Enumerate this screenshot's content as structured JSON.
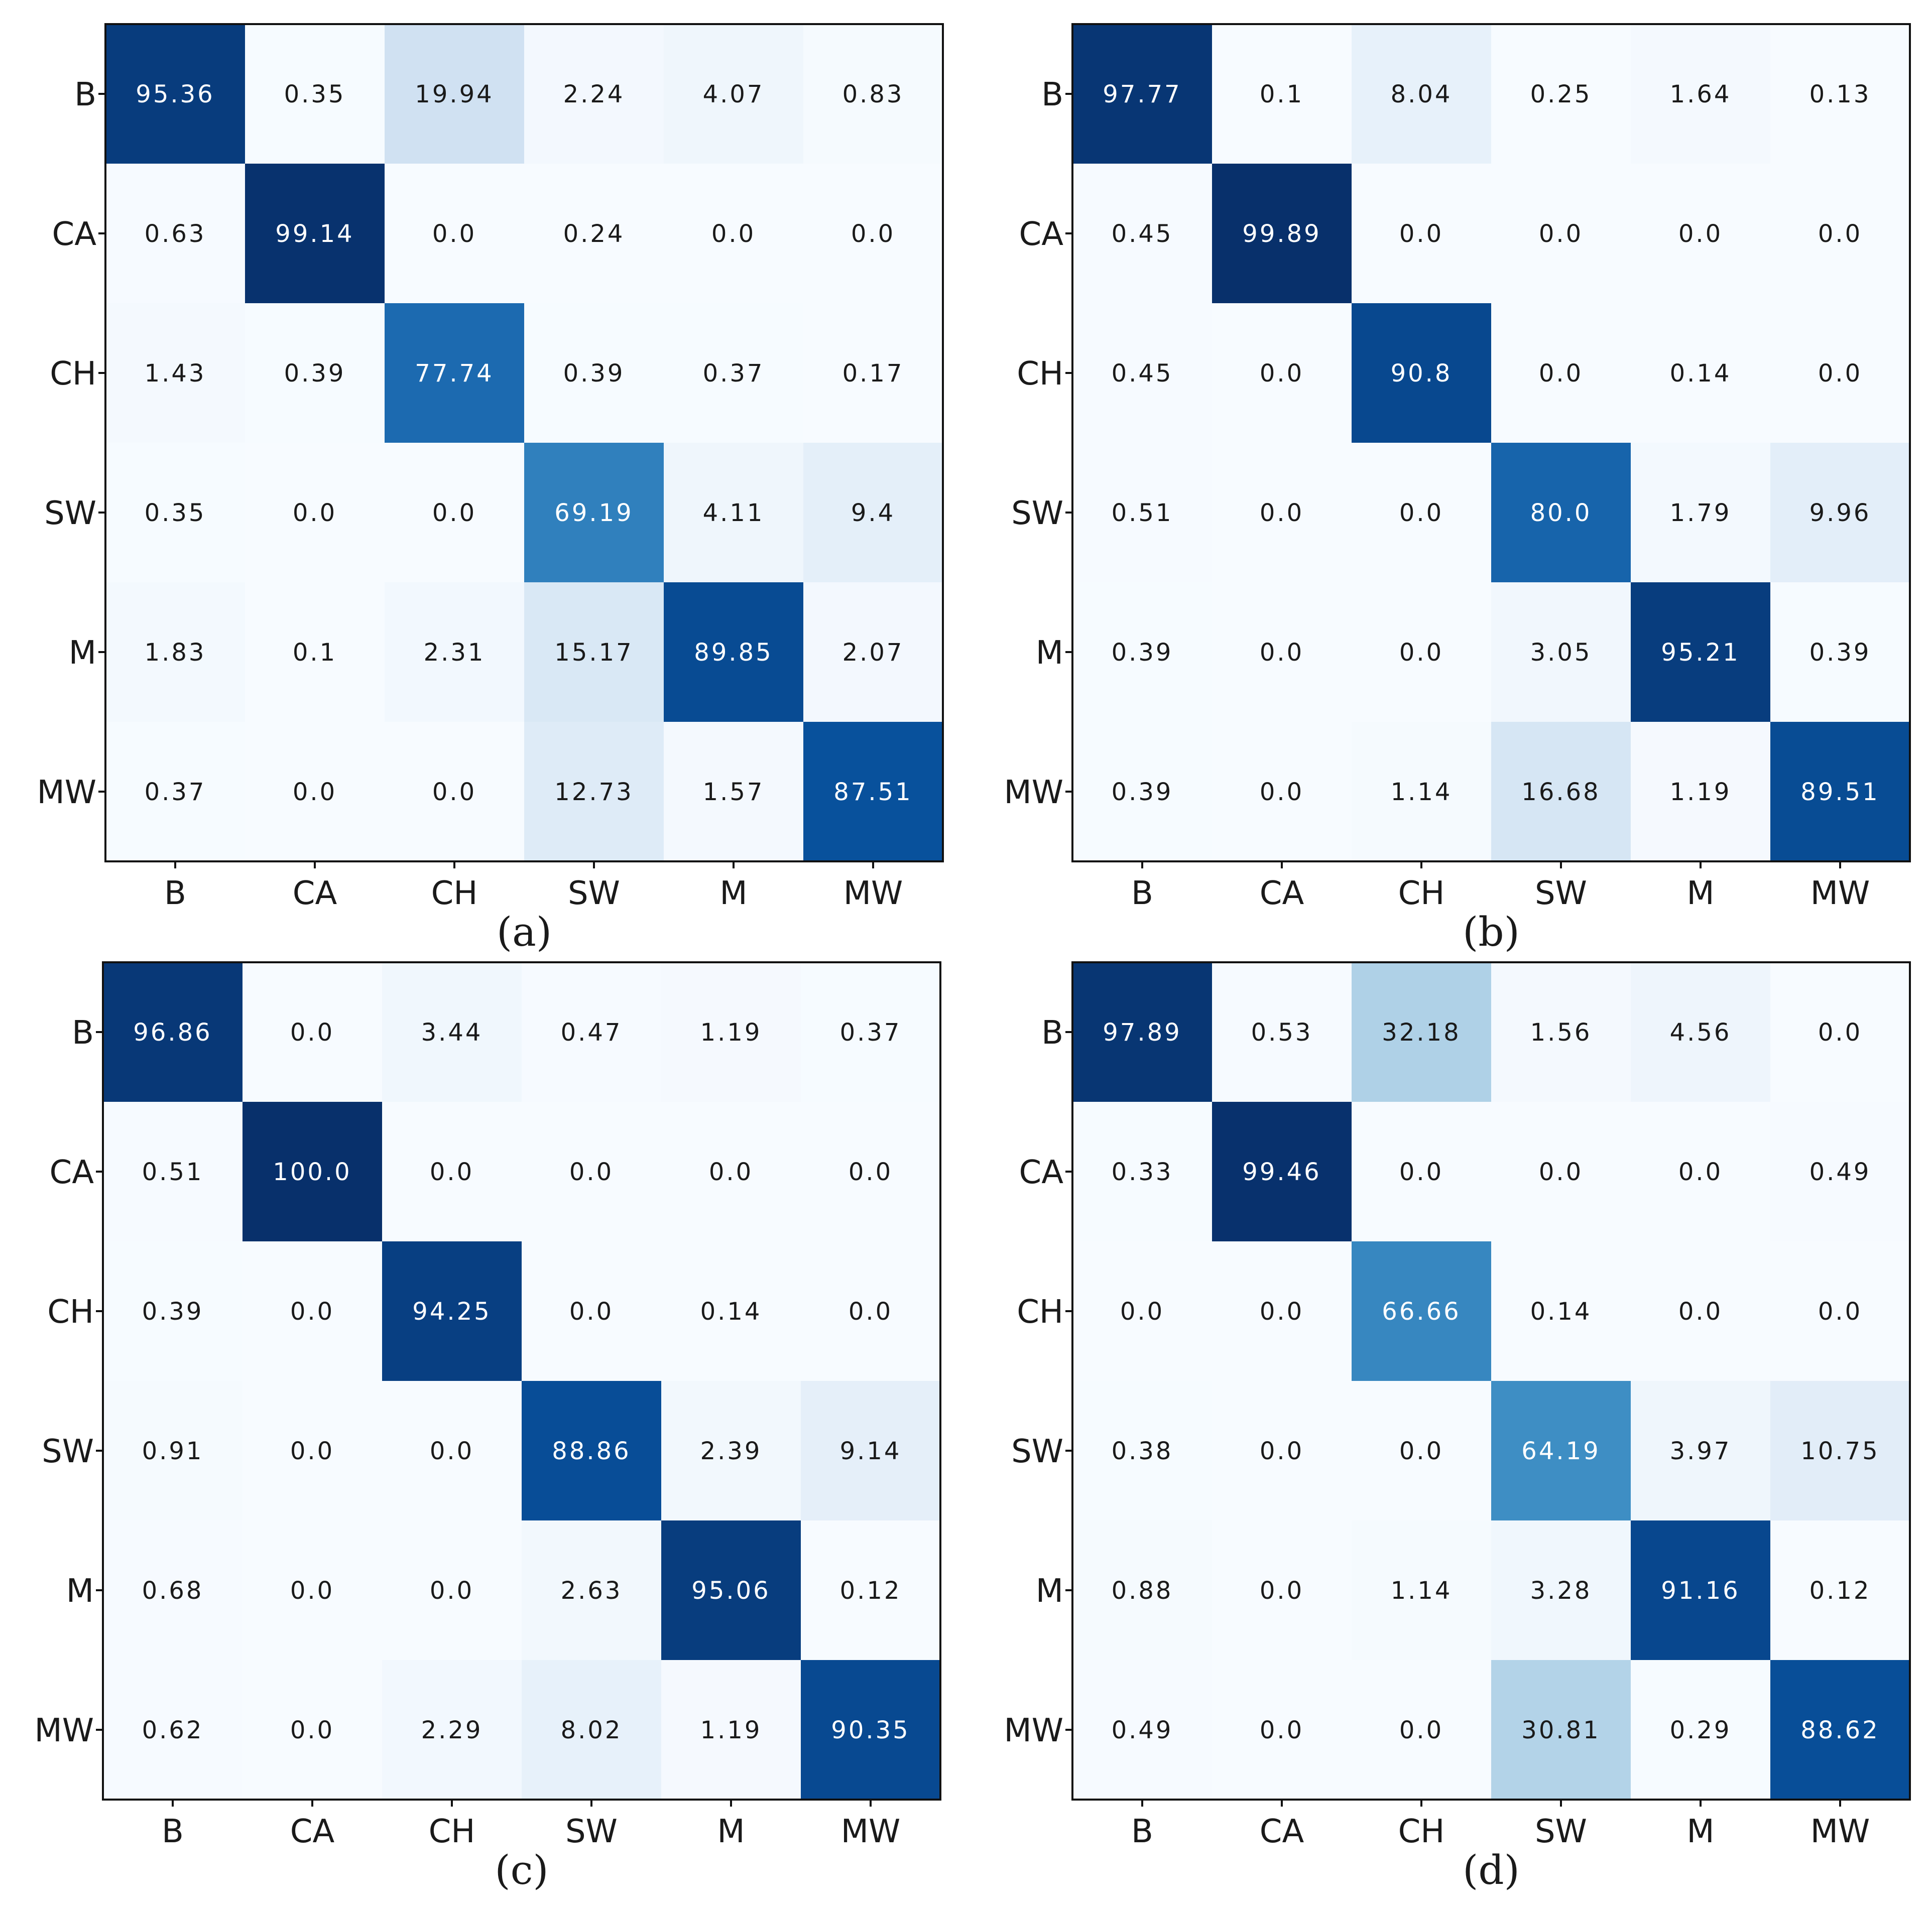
{
  "chart_data": [
    {
      "type": "heatmap",
      "caption": "(a)",
      "row_labels": [
        "B",
        "CA",
        "CH",
        "SW",
        "M",
        "MW"
      ],
      "col_labels": [
        "B",
        "CA",
        "CH",
        "SW",
        "M",
        "MW"
      ],
      "values": [
        [
          "95.36",
          "0.35",
          "19.94",
          "2.24",
          "4.07",
          "0.83"
        ],
        [
          "0.63",
          "99.14",
          "0.0",
          "0.24",
          "0.0",
          "0.0"
        ],
        [
          "1.43",
          "0.39",
          "77.74",
          "0.39",
          "0.37",
          "0.17"
        ],
        [
          "0.35",
          "0.0",
          "0.0",
          "69.19",
          "4.11",
          "9.4"
        ],
        [
          "1.83",
          "0.1",
          "2.31",
          "15.17",
          "89.85",
          "2.07"
        ],
        [
          "0.37",
          "0.0",
          "0.0",
          "12.73",
          "1.57",
          "87.51"
        ]
      ],
      "vmin": 0,
      "vmax": 100,
      "colormap": "Blues"
    },
    {
      "type": "heatmap",
      "caption": "(b)",
      "row_labels": [
        "B",
        "CA",
        "CH",
        "SW",
        "M",
        "MW"
      ],
      "col_labels": [
        "B",
        "CA",
        "CH",
        "SW",
        "M",
        "MW"
      ],
      "values": [
        [
          "97.77",
          "0.1",
          "8.04",
          "0.25",
          "1.64",
          "0.13"
        ],
        [
          "0.45",
          "99.89",
          "0.0",
          "0.0",
          "0.0",
          "0.0"
        ],
        [
          "0.45",
          "0.0",
          "90.8",
          "0.0",
          "0.14",
          "0.0"
        ],
        [
          "0.51",
          "0.0",
          "0.0",
          "80.0",
          "1.79",
          "9.96"
        ],
        [
          "0.39",
          "0.0",
          "0.0",
          "3.05",
          "95.21",
          "0.39"
        ],
        [
          "0.39",
          "0.0",
          "1.14",
          "16.68",
          "1.19",
          "89.51"
        ]
      ],
      "vmin": 0,
      "vmax": 100,
      "colormap": "Blues"
    },
    {
      "type": "heatmap",
      "caption": "(c)",
      "row_labels": [
        "B",
        "CA",
        "CH",
        "SW",
        "M",
        "MW"
      ],
      "col_labels": [
        "B",
        "CA",
        "CH",
        "SW",
        "M",
        "MW"
      ],
      "values": [
        [
          "96.86",
          "0.0",
          "3.44",
          "0.47",
          "1.19",
          "0.37"
        ],
        [
          "0.51",
          "100.0",
          "0.0",
          "0.0",
          "0.0",
          "0.0"
        ],
        [
          "0.39",
          "0.0",
          "94.25",
          "0.0",
          "0.14",
          "0.0"
        ],
        [
          "0.91",
          "0.0",
          "0.0",
          "88.86",
          "2.39",
          "9.14"
        ],
        [
          "0.68",
          "0.0",
          "0.0",
          "2.63",
          "95.06",
          "0.12"
        ],
        [
          "0.62",
          "0.0",
          "2.29",
          "8.02",
          "1.19",
          "90.35"
        ]
      ],
      "vmin": 0,
      "vmax": 100,
      "colormap": "Blues"
    },
    {
      "type": "heatmap",
      "caption": "(d)",
      "row_labels": [
        "B",
        "CA",
        "CH",
        "SW",
        "M",
        "MW"
      ],
      "col_labels": [
        "B",
        "CA",
        "CH",
        "SW",
        "M",
        "MW"
      ],
      "values": [
        [
          "97.89",
          "0.53",
          "32.18",
          "1.56",
          "4.56",
          "0.0"
        ],
        [
          "0.33",
          "99.46",
          "0.0",
          "0.0",
          "0.0",
          "0.49"
        ],
        [
          "0.0",
          "0.0",
          "66.66",
          "0.14",
          "0.0",
          "0.0"
        ],
        [
          "0.38",
          "0.0",
          "0.0",
          "64.19",
          "3.97",
          "10.75"
        ],
        [
          "0.88",
          "0.0",
          "1.14",
          "3.28",
          "91.16",
          "0.12"
        ],
        [
          "0.49",
          "0.0",
          "0.0",
          "30.81",
          "0.29",
          "88.62"
        ]
      ],
      "vmin": 0,
      "vmax": 100,
      "colormap": "Blues"
    }
  ]
}
